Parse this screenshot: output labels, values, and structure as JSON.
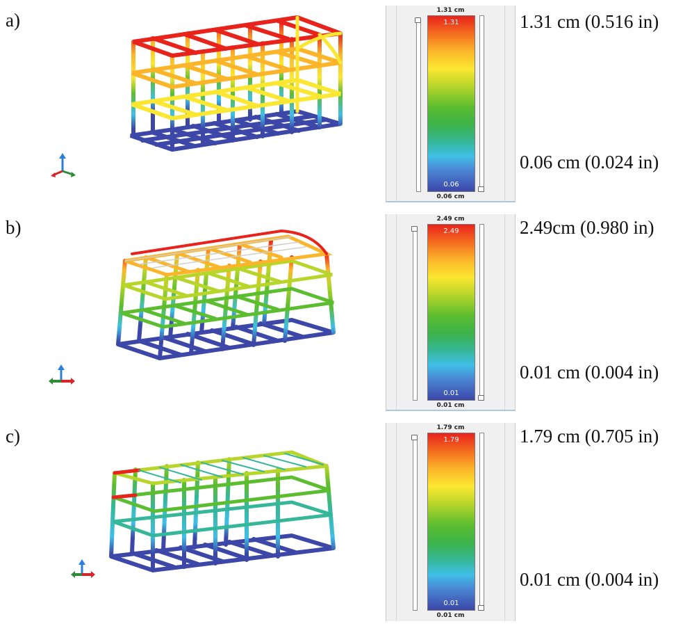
{
  "panels": [
    {
      "label": "a)",
      "legend": {
        "top_cap": "1.31 cm",
        "bar_top": "1.31",
        "bar_bottom": "0.06",
        "bottom_cap": "0.06 cm"
      },
      "annot_max": "1.31 cm (0.516 in)",
      "annot_min": "0.06 cm (0.024 in)"
    },
    {
      "label": "b)",
      "legend": {
        "top_cap": "2.49 cm",
        "bar_top": "2.49",
        "bar_bottom": "0.01",
        "bottom_cap": "0.01 cm"
      },
      "annot_max": "2.49cm (0.980 in)",
      "annot_min": "0.01 cm (0.004 in)"
    },
    {
      "label": "c)",
      "legend": {
        "top_cap": "1.79 cm",
        "bar_top": "1.79",
        "bar_bottom": "0.01",
        "bottom_cap": "0.01 cm"
      },
      "annot_max": "1.79 cm (0.705 in)",
      "annot_min": "0.01 cm (0.004 in)"
    }
  ],
  "colors": {
    "max": "#e8231c",
    "high": "#fbe731",
    "mid": "#3cb34a",
    "low": "#3fbfe6",
    "min": "#3c47a8"
  }
}
